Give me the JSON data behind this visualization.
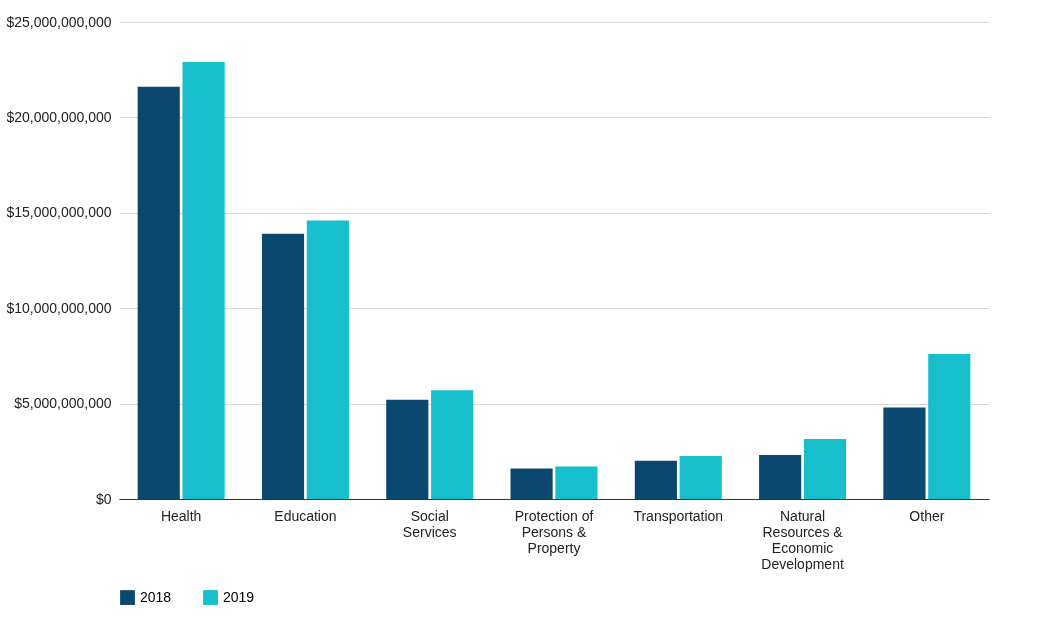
{
  "chart_data": {
    "type": "bar",
    "categories": [
      "Health",
      "Education",
      "Social Services",
      "Protection of Persons & Property",
      "Transportation",
      "Natural Resources & Economic Development",
      "Other"
    ],
    "series": [
      {
        "name": "2018",
        "color": "#0b4870",
        "values": [
          21600000000,
          13900000000,
          5200000000,
          1600000000,
          2000000000,
          2300000000,
          4800000000
        ]
      },
      {
        "name": "2019",
        "color": "#17becb",
        "values": [
          22900000000,
          14600000000,
          5700000000,
          1700000000,
          2250000000,
          3150000000,
          7600000000
        ]
      }
    ],
    "ylim": [
      0,
      25000000000
    ],
    "yticks": [
      {
        "value": 0,
        "label": "$0"
      },
      {
        "value": 5000000000,
        "label": "$5,000,000,000"
      },
      {
        "value": 10000000000,
        "label": "$10,000,000,000"
      },
      {
        "value": 15000000000,
        "label": "$15,000,000,000"
      },
      {
        "value": 20000000000,
        "label": "$20,000,000,000"
      },
      {
        "value": 25000000000,
        "label": "$25,000,000,000"
      }
    ],
    "grid": "y",
    "legend": "bottom"
  }
}
